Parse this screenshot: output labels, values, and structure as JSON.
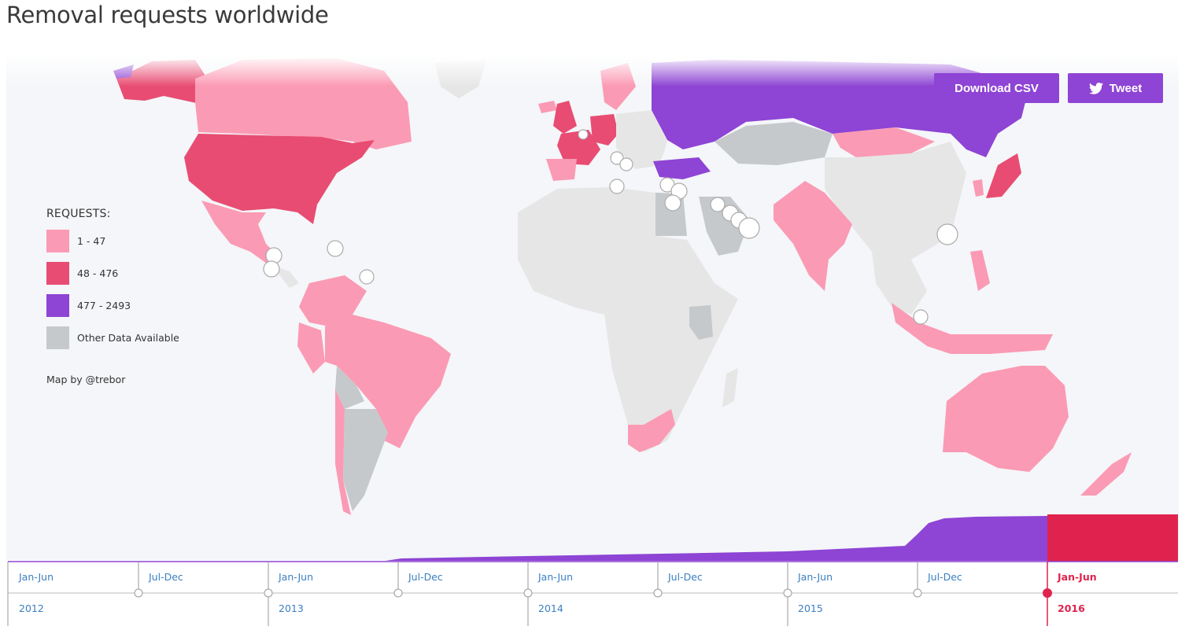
{
  "title": "Removal requests worldwide",
  "buttons": {
    "csv_label": "Download CSV",
    "tweet_label": "Tweet"
  },
  "legend": {
    "title": "REQUESTS:",
    "items": [
      {
        "label": "1 - 47",
        "color": "#fb9ab4"
      },
      {
        "label": "48 - 476",
        "color": "#e84c72"
      },
      {
        "label": "477 - 2493",
        "color": "#8e44d4"
      },
      {
        "label": "Other Data Available",
        "color": "#c6c9cc"
      }
    ]
  },
  "credit": "Map by @trebor",
  "colors": {
    "no_data": "#e6e6e6",
    "ocean": "#f4f6f9",
    "timeline_link": "#3a7fc1",
    "timeline_active": "#e0234e"
  },
  "timeline": {
    "periods": [
      {
        "label": "Jan-Jun",
        "year": "2012"
      },
      {
        "label": "Jul-Dec",
        "year": ""
      },
      {
        "label": "Jan-Jun",
        "year": "2013"
      },
      {
        "label": "Jul-Dec",
        "year": ""
      },
      {
        "label": "Jan-Jun",
        "year": "2014"
      },
      {
        "label": "Jul-Dec",
        "year": ""
      },
      {
        "label": "Jan-Jun",
        "year": "2015"
      },
      {
        "label": "Jul-Dec",
        "year": ""
      },
      {
        "label": "Jan-Jun",
        "year": "2016"
      }
    ],
    "active_index": 8
  },
  "map_regions": [
    {
      "name": "United States",
      "level": "48 - 476"
    },
    {
      "name": "Canada",
      "level": "1 - 47"
    },
    {
      "name": "Mexico",
      "level": "1 - 47"
    },
    {
      "name": "Brazil",
      "level": "1 - 47"
    },
    {
      "name": "Russia",
      "level": "477 - 2493"
    },
    {
      "name": "Turkey",
      "level": "477 - 2493"
    },
    {
      "name": "France",
      "level": "48 - 476"
    },
    {
      "name": "Germany",
      "level": "48 - 476"
    },
    {
      "name": "United Kingdom",
      "level": "48 - 476"
    },
    {
      "name": "Japan",
      "level": "48 - 476"
    },
    {
      "name": "India",
      "level": "1 - 47"
    },
    {
      "name": "Australia",
      "level": "1 - 47"
    },
    {
      "name": "South Africa",
      "level": "1 - 47"
    },
    {
      "name": "Argentina",
      "level": "Other Data Available"
    },
    {
      "name": "Saudi Arabia",
      "level": "Other Data Available"
    }
  ]
}
